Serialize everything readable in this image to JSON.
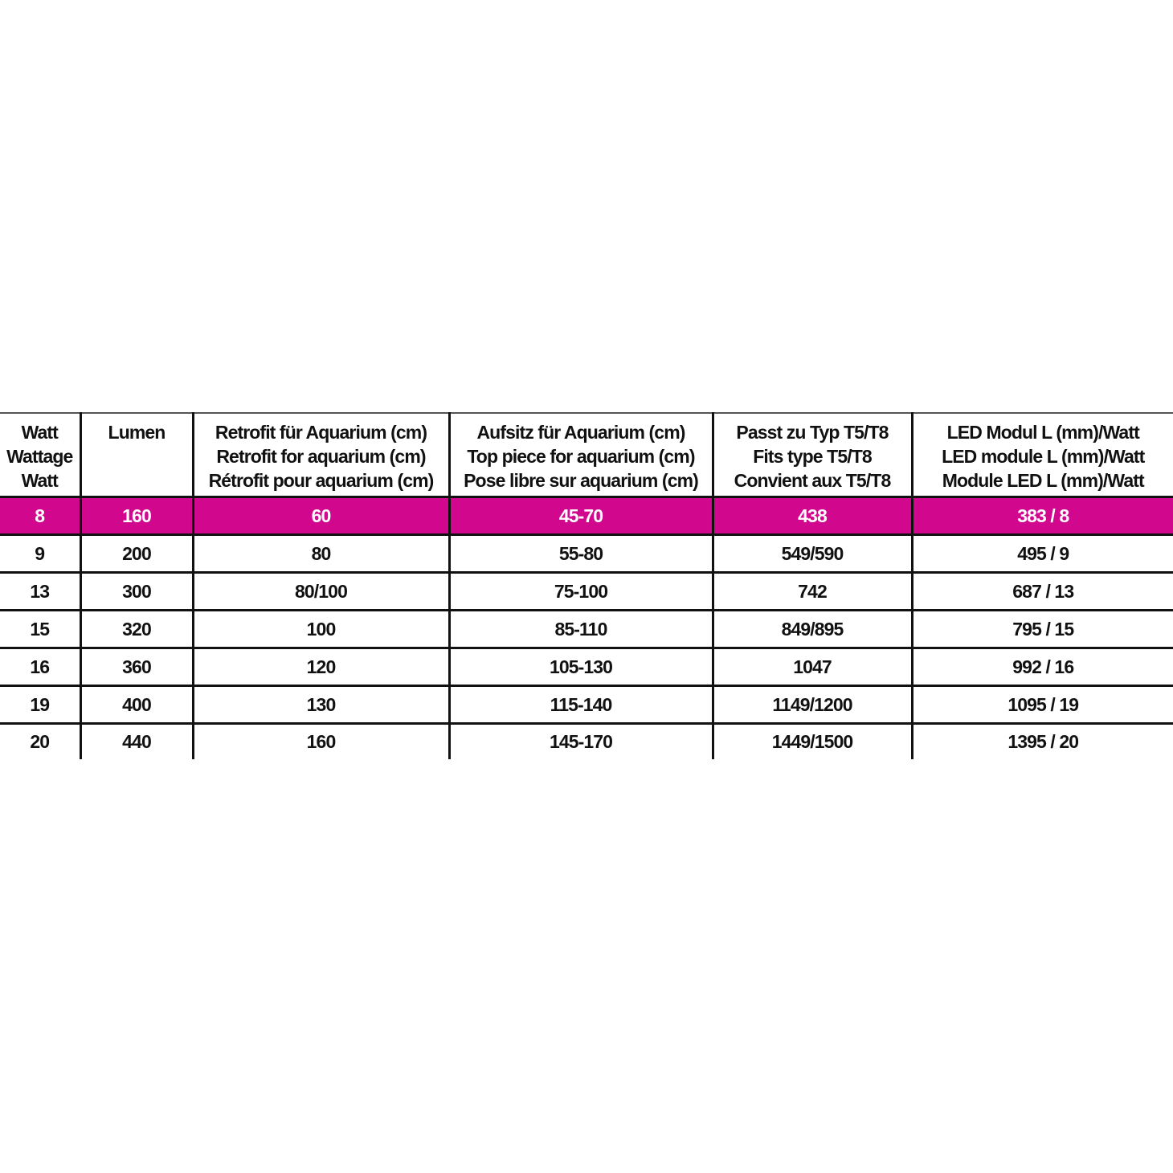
{
  "accent_color": "#d1088e",
  "headers": [
    [
      "Watt",
      "Wattage",
      "Watt"
    ],
    [
      "Lumen"
    ],
    [
      "Retrofit für Aquarium (cm)",
      "Retrofit for aquarium (cm)",
      "Rétrofit pour aquarium (cm)"
    ],
    [
      "Aufsitz für Aquarium (cm)",
      "Top piece for aquarium (cm)",
      "Pose libre sur aquarium (cm)"
    ],
    [
      "Passt zu Typ T5/T8",
      "Fits type T5/T8",
      "Convient aux T5/T8"
    ],
    [
      "LED Modul L (mm)/Watt",
      "LED module L (mm)/Watt",
      "Module LED L (mm)/Watt"
    ]
  ],
  "highlighted_row": 0,
  "rows": [
    [
      "8",
      "160",
      "60",
      "45-70",
      "438",
      "383 / 8"
    ],
    [
      "9",
      "200",
      "80",
      "55-80",
      "549/590",
      "495 / 9"
    ],
    [
      "13",
      "300",
      "80/100",
      "75-100",
      "742",
      "687 / 13"
    ],
    [
      "15",
      "320",
      "100",
      "85-110",
      "849/895",
      "795 / 15"
    ],
    [
      "16",
      "360",
      "120",
      "105-130",
      "1047",
      "992 / 16"
    ],
    [
      "19",
      "400",
      "130",
      "115-140",
      "1149/1200",
      "1095 / 19"
    ],
    [
      "20",
      "440",
      "160",
      "145-170",
      "1449/1500",
      "1395 / 20"
    ]
  ]
}
